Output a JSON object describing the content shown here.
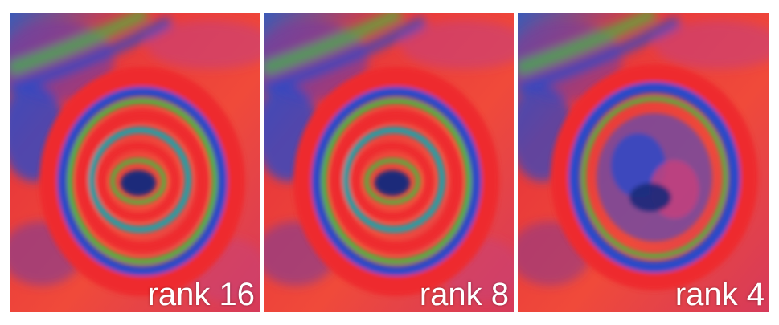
{
  "panels": [
    {
      "label": "rank 16"
    },
    {
      "label": "rank 8"
    },
    {
      "label": "rank 4"
    }
  ],
  "palette": {
    "red": "#ee2a2e",
    "orange_red": "#f0553a",
    "magenta": "#c8407a",
    "purple": "#7a3a9a",
    "blue": "#2a4ac8",
    "teal": "#20a0a8",
    "green": "#3cc040",
    "dark_blue": "#1a2a7a"
  }
}
